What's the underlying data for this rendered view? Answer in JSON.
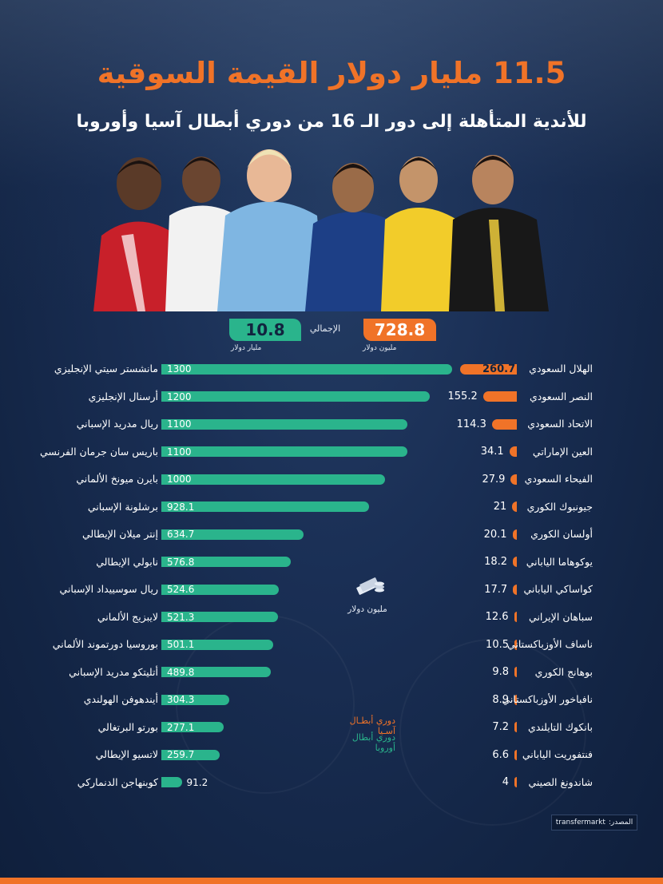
{
  "title": "11.5 مليار دولار القيمة السوقية",
  "subtitle": "للأندية المتأهلة إلى دور الـ 16 من دوري أبطال آسيا وأوروبا",
  "totals": {
    "label": "الإجمالي",
    "asia_value": "728.8",
    "asia_unit": "مليون دولار",
    "europe_value": "10.8",
    "europe_unit": "مليار دولار"
  },
  "unit_label": "مليون دولار",
  "legend": {
    "asia": "دوري أبطـال آسـيا",
    "europe": "دوري أبطال أوروبا"
  },
  "source": {
    "label": "المصدر:",
    "value": "transfermarkt"
  },
  "colors": {
    "asia": "#f07328",
    "europe": "#2ab48c",
    "background": "#142747"
  },
  "chart_data": [
    {
      "type": "bar",
      "series_key": "europe",
      "categories": [
        "مانشستر سيتي الإنجليزي",
        "أرسنال الإنجليزي",
        "ريال مدريد الإسباني",
        "باريس سان جرمان الفرنسي",
        "بايرن ميونخ الألماني",
        "برشلونة الإسباني",
        "إنتر ميلان الإيطالي",
        "نابولي الإيطالي",
        "ريال سوسييداد الإسباني",
        "لايبزيج الألماني",
        "بوروسيا دورتموند الألماني",
        "أتليتكو مدريد الإسباني",
        "أيندهوفن الهولندي",
        "بورتو البرتغالي",
        "لاتسيو الإيطالي",
        "كوبنهاجن الدنماركي"
      ],
      "values": [
        1300,
        1200,
        1100,
        1100,
        1000,
        928.1,
        634.7,
        576.8,
        524.6,
        521.3,
        501.1,
        489.8,
        304.3,
        277.1,
        259.7,
        91.2
      ],
      "labels": [
        "1300",
        "1200",
        "1100",
        "1100",
        "1000",
        "928.1",
        "634.7",
        "576.8",
        "524.6",
        "521.3",
        "501.1",
        "489.8",
        "304.3",
        "277.1",
        "259.7",
        "91.2"
      ]
    },
    {
      "type": "bar",
      "series_key": "asia",
      "categories": [
        "الهلال السعودي",
        "النصر السعودي",
        "الاتحاد السعودي",
        "العين الإماراتي",
        "الفيحاء السعودي",
        "جيونبوك الكوري",
        "أولسان الكوري",
        "يوكوهاما الياباني",
        "كواساكي الياباني",
        "سباهان الإيراني",
        "ناساف الأوزباكستاني",
        "بوهانج الكوري",
        "نافباخور الأوزباكستاني",
        "بانكوك التايلندي",
        "فنتفوريت الياباني",
        "شاندونغ الصيني"
      ],
      "values": [
        260.7,
        155.2,
        114.3,
        34.1,
        27.9,
        21,
        20.1,
        18.2,
        17.7,
        12.6,
        10.5,
        9.8,
        8.9,
        7.2,
        6.6,
        4
      ],
      "labels": [
        "260.7",
        "155.2",
        "114.3",
        "34.1",
        "27.9",
        "21",
        "20.1",
        "18.2",
        "17.7",
        "12.6",
        "10.5",
        "9.8",
        "8.9",
        "7.2",
        "6.6",
        "4"
      ]
    }
  ]
}
